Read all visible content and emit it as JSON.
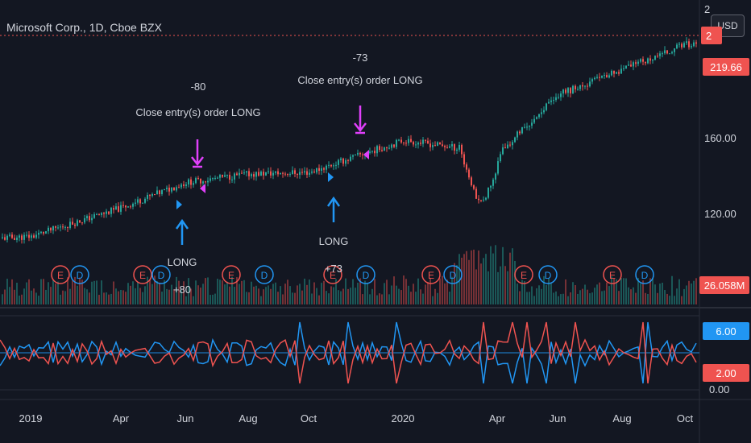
{
  "header": {
    "title": "Microsoft Corp., 1D, Cboe BZX"
  },
  "currency_button": "USD",
  "price_axis": {
    "ticks": [
      "160.00",
      "120.00"
    ],
    "top_partial": "2",
    "last_price_tag": "219.66",
    "top_tag_partial": "2"
  },
  "volume_tag": "26.058M",
  "oscillator_axis": {
    "blue_tag": "6.00",
    "red_tag": "2.00",
    "bottom_tick": "0.00"
  },
  "time_axis": [
    "2019",
    "Apr",
    "Jun",
    "Aug",
    "Oct",
    "2020",
    "Apr",
    "Jun",
    "Aug",
    "Oct"
  ],
  "annotations": {
    "exit1_qty": "-80",
    "exit1_text": "Close entry(s) order LONG",
    "exit2_qty": "-73",
    "exit2_text": "Close entry(s) order LONG",
    "entry1_label": "LONG",
    "entry1_qty": "+80",
    "entry2_label": "LONG",
    "entry2_qty": "+73"
  },
  "event_markers": [
    "E",
    "D",
    "E",
    "D",
    "E",
    "D",
    "E",
    "D",
    "E",
    "D",
    "E",
    "D",
    "E",
    "D",
    "E",
    "D"
  ],
  "colors": {
    "background": "#131722",
    "up": "#26a69a",
    "down": "#ef5350",
    "blue": "#2196f3",
    "magenta": "#e040fb",
    "text": "#d1d4dc"
  },
  "chart_data": {
    "type": "line",
    "title": "Microsoft Corp., 1D, Cboe BZX",
    "x": [
      "2019",
      "Apr",
      "Jun",
      "Aug",
      "Oct",
      "2020",
      "Apr",
      "Jun",
      "Aug",
      "Oct"
    ],
    "series": [
      {
        "name": "",
        "values": [
          101,
          118,
          133,
          138,
          139,
          158,
          150,
          185,
          200,
          215
        ]
      }
    ],
    "ylim": [
      95,
      225
    ]
  }
}
